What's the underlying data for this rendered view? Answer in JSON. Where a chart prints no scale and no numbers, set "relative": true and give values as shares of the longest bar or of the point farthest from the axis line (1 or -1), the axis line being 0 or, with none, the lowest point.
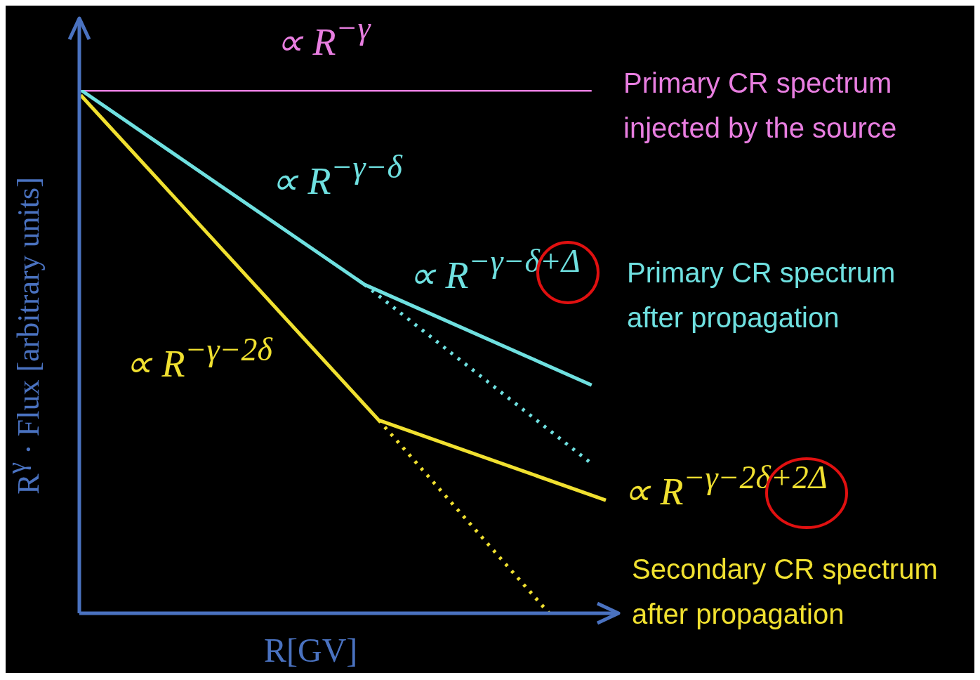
{
  "chart_data": {
    "type": "line",
    "relative": true,
    "xlabel": "R[GV]",
    "ylabel": "R$^{γ}$ · Flux [arbitrary units]",
    "line_style": "solid",
    "categories": [
      null,
      null,
      null,
      null,
      null,
      null,
      null,
      null,
      null,
      null,
      null,
      null,
      null,
      null,
      null,
      null,
      null,
      null,
      null,
      null,
      null,
      null,
      null,
      null,
      null,
      null,
      null,
      null,
      null,
      null,
      null,
      null,
      null,
      null,
      null,
      null,
      null,
      null
    ],
    "series": [
      {
        "name": "Primary CR spectrum injected by the source",
        "color": "#e87ee0",
        "values": [
          1,
          null,
          null,
          null,
          null,
          null,
          null,
          null,
          null,
          null,
          null,
          null,
          null,
          null,
          null,
          null,
          null,
          null,
          null,
          null,
          null,
          null,
          null,
          null,
          null,
          null,
          null,
          null,
          null,
          null,
          null,
          null,
          null,
          null,
          null,
          null,
          1,
          null
        ]
      },
      {
        "name": "Primary CR spectrum after propagation",
        "color": "#6fe0e0",
        "values": [
          1,
          null,
          null,
          null,
          null,
          null,
          null,
          null,
          null,
          null,
          null,
          null,
          null,
          null,
          null,
          null,
          null,
          null,
          null,
          null,
          0.628,
          null,
          null,
          null,
          null,
          null,
          null,
          null,
          null,
          null,
          null,
          null,
          null,
          null,
          null,
          null,
          0.436,
          null
        ]
      },
      {
        "color": "#6fe0e0",
        "line_style": "dotted",
        "values": [
          null,
          null,
          null,
          null,
          null,
          null,
          null,
          null,
          null,
          null,
          null,
          null,
          null,
          null,
          null,
          null,
          null,
          null,
          null,
          null,
          0.628,
          null,
          null,
          null,
          null,
          null,
          null,
          null,
          null,
          null,
          null,
          null,
          null,
          null,
          null,
          null,
          0.286,
          null
        ]
      },
      {
        "name": "Secondary CR spectrum after propagation",
        "color": "#f0e030",
        "values": [
          0.99,
          null,
          null,
          null,
          null,
          null,
          null,
          null,
          null,
          null,
          null,
          null,
          null,
          null,
          null,
          null,
          null,
          null,
          null,
          null,
          null,
          0.369,
          null,
          null,
          null,
          null,
          null,
          null,
          null,
          null,
          null,
          null,
          null,
          null,
          null,
          null,
          null,
          0.216
        ]
      },
      {
        "color": "#f0e030",
        "line_style": "dotted",
        "values": [
          null,
          null,
          null,
          null,
          null,
          null,
          null,
          null,
          null,
          null,
          null,
          null,
          null,
          null,
          null,
          null,
          null,
          null,
          null,
          null,
          null,
          0.369,
          null,
          null,
          null,
          null,
          null,
          null,
          null,
          null,
          null,
          null,
          null,
          0,
          null,
          null,
          null,
          null
        ]
      }
    ],
    "annotations": [
      "∝ R$^{−γ}$",
      "∝ R$^{−γ−δ}$",
      "∝ R$^{−γ−δ+Δ}$",
      "∝ R$^{−γ−2δ}$",
      "∝ R$^{−γ−2δ+2Δ}$"
    ]
  }
}
